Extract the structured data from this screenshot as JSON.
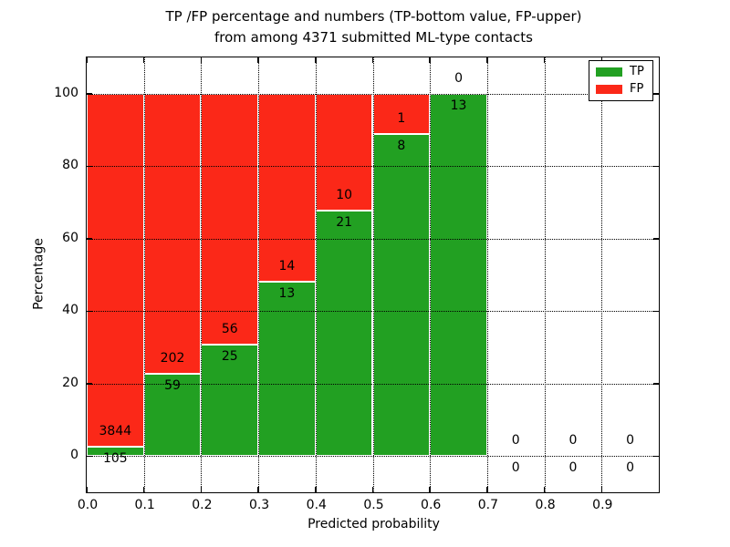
{
  "chart_data": {
    "type": "bar",
    "stacked": true,
    "orientation": "vertical",
    "title": "TP /FP percentage and numbers (TP-bottom value, FP-upper) from among 4371 submitted ML-type contacts",
    "title_lines": [
      "TP /FP percentage and numbers (TP-bottom value, FP-upper)",
      "from among 4371 submitted ML-type contacts"
    ],
    "xlabel": "Predicted probability",
    "ylabel": "Percentage",
    "xlim": [
      0.0,
      1.0
    ],
    "ylim": [
      -10,
      110
    ],
    "x_ticks": [
      0.0,
      0.1,
      0.2,
      0.3,
      0.4,
      0.5,
      0.6,
      0.7,
      0.8,
      0.9
    ],
    "x_tick_labels": [
      "0.0",
      "0.1",
      "0.2",
      "0.3",
      "0.4",
      "0.5",
      "0.6",
      "0.7",
      "0.8",
      "0.9"
    ],
    "y_ticks": [
      0,
      20,
      40,
      60,
      80,
      100
    ],
    "y_tick_labels": [
      "0",
      "20",
      "40",
      "60",
      "80",
      "100"
    ],
    "grid": true,
    "grid_style": "dotted",
    "total_contacts": 4371,
    "colors": {
      "tp": "#22a022",
      "fp": "#fb2818",
      "bar_edge": "#ffffff",
      "grid": "#000000"
    },
    "legend": {
      "position": "upper right",
      "entries": [
        {
          "label": "TP",
          "color_key": "tp"
        },
        {
          "label": "FP",
          "color_key": "fp"
        }
      ]
    },
    "bins": [
      {
        "x_start": 0.0,
        "x_end": 0.1,
        "tp": 105,
        "fp": 3844,
        "tp_pct": 2.66,
        "fp_pct": 97.34
      },
      {
        "x_start": 0.1,
        "x_end": 0.2,
        "tp": 59,
        "fp": 202,
        "tp_pct": 22.61,
        "fp_pct": 77.39
      },
      {
        "x_start": 0.2,
        "x_end": 0.3,
        "tp": 25,
        "fp": 56,
        "tp_pct": 30.86,
        "fp_pct": 69.14
      },
      {
        "x_start": 0.3,
        "x_end": 0.4,
        "tp": 13,
        "fp": 14,
        "tp_pct": 48.15,
        "fp_pct": 51.85
      },
      {
        "x_start": 0.4,
        "x_end": 0.5,
        "tp": 21,
        "fp": 10,
        "tp_pct": 67.74,
        "fp_pct": 32.26
      },
      {
        "x_start": 0.5,
        "x_end": 0.6,
        "tp": 8,
        "fp": 1,
        "tp_pct": 88.89,
        "fp_pct": 11.11
      },
      {
        "x_start": 0.6,
        "x_end": 0.7,
        "tp": 13,
        "fp": 0,
        "tp_pct": 100.0,
        "fp_pct": 0.0
      },
      {
        "x_start": 0.7,
        "x_end": 0.8,
        "tp": 0,
        "fp": 0,
        "tp_pct": 0.0,
        "fp_pct": 0.0
      },
      {
        "x_start": 0.8,
        "x_end": 0.9,
        "tp": 0,
        "fp": 0,
        "tp_pct": 0.0,
        "fp_pct": 0.0
      },
      {
        "x_start": 0.9,
        "x_end": 1.0,
        "tp": 0,
        "fp": 0,
        "tp_pct": 0.0,
        "fp_pct": 0.0
      }
    ]
  }
}
